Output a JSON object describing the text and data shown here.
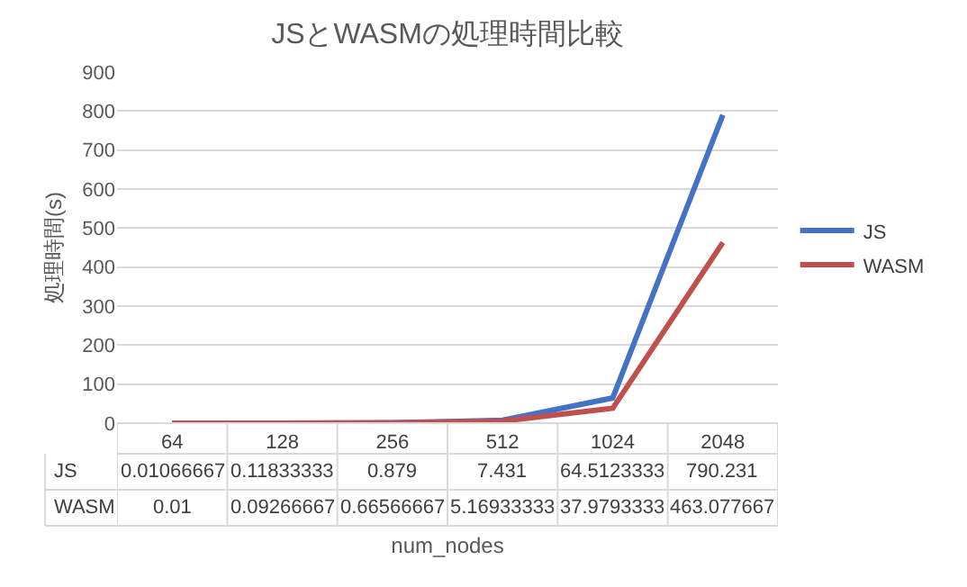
{
  "chart_data": {
    "type": "line",
    "title": "JSとWASMの処理時間比較",
    "xlabel": "num_nodes",
    "ylabel": "処理時間(s)",
    "categories": [
      "64",
      "128",
      "256",
      "512",
      "1024",
      "2048"
    ],
    "series": [
      {
        "name": "JS",
        "color": "#4472c4",
        "values": [
          0.01066667,
          0.11833333,
          0.879,
          7.431,
          64.5123333,
          790.231
        ]
      },
      {
        "name": "WASM",
        "color": "#c0504d",
        "values": [
          0.01,
          0.09266667,
          0.66566667,
          5.16933333,
          37.9793333,
          463.077667
        ]
      }
    ],
    "ylim": [
      0,
      900
    ],
    "yticks": [
      0,
      100,
      200,
      300,
      400,
      500,
      600,
      700,
      800,
      900
    ],
    "grid": "y",
    "legend": "right",
    "data_labels": true,
    "marker": "none",
    "line_style": "solid"
  }
}
